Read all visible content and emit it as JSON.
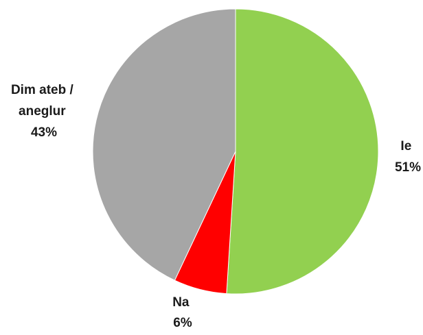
{
  "chart_data": {
    "type": "pie",
    "title": "",
    "slices": [
      {
        "label": "Ie",
        "value": 51,
        "value_label": "51%",
        "color": "#92d050"
      },
      {
        "label": "Na",
        "value": 6,
        "value_label": "6%",
        "color": "#ff0000"
      },
      {
        "label": "Dim ateb / aneglur",
        "label_lines": [
          "Dim ateb /",
          "aneglur"
        ],
        "value": 43,
        "value_label": "43%",
        "color": "#a6a6a6"
      }
    ],
    "start": "12 o'clock",
    "direction": "clockwise",
    "legend": "none"
  }
}
